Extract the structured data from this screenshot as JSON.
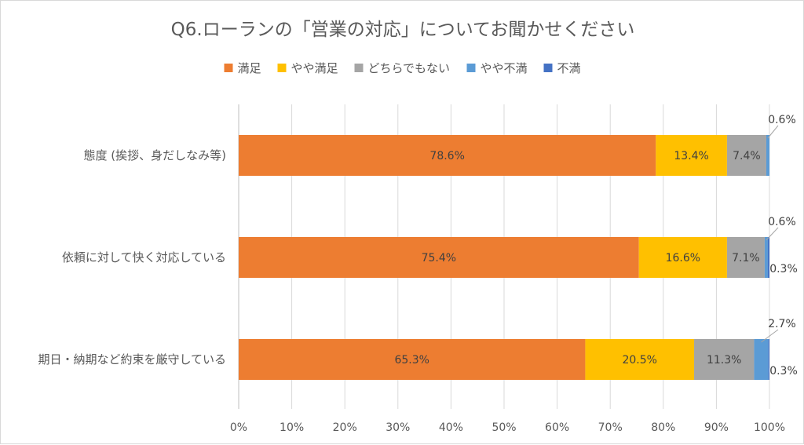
{
  "chart_data": {
    "type": "bar",
    "orientation": "horizontal",
    "stacked": "percent",
    "title": "Q6.ローランの「営業の対応」についてお聞かせください",
    "categories": [
      "態度 (挨拶、身だしなみ等)",
      "依頼に対して快く対応している",
      "期日・納期など約束を厳守している"
    ],
    "series": [
      {
        "name": "満足",
        "color": "#ED7D31",
        "values": [
          78.6,
          75.4,
          65.3
        ]
      },
      {
        "name": "やや満足",
        "color": "#FFC000",
        "values": [
          13.4,
          16.6,
          20.5
        ]
      },
      {
        "name": "どちらでもない",
        "color": "#A5A5A5",
        "values": [
          7.4,
          7.1,
          11.3
        ]
      },
      {
        "name": "やや不満",
        "color": "#5B9BD5",
        "values": [
          0.6,
          0.6,
          2.7
        ]
      },
      {
        "name": "不満",
        "color": "#4472C4",
        "values": [
          0.0,
          0.3,
          0.3
        ]
      }
    ],
    "data_labels": [
      [
        "78.6%",
        "13.4%",
        "7.4%",
        "0.6%",
        null
      ],
      [
        "75.4%",
        "16.6%",
        "7.1%",
        "0.6%",
        "0.3%"
      ],
      [
        "65.3%",
        "20.5%",
        "11.3%",
        "2.7%",
        "0.3%"
      ]
    ],
    "x_ticks": [
      "0%",
      "10%",
      "20%",
      "30%",
      "40%",
      "50%",
      "60%",
      "70%",
      "80%",
      "90%",
      "100%"
    ],
    "xlim": [
      0,
      100
    ],
    "grid": true,
    "legend_position": "top"
  }
}
